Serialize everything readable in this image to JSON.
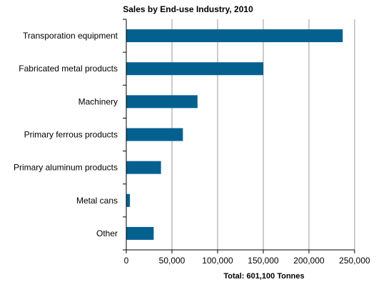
{
  "chart_data": {
    "type": "bar",
    "orientation": "horizontal",
    "title": "Sales by End-use Industry, 2010",
    "footnote": "Total: 601,100 Tonnes",
    "categories": [
      "Transporation equipment",
      "Fabricated metal products",
      "Machinery",
      "Primary ferrous products",
      "Primary aluminum products",
      "Metal cans",
      "Other"
    ],
    "values": [
      237000,
      150000,
      78000,
      62000,
      38000,
      4000,
      30000
    ],
    "xlim": [
      0,
      250000
    ],
    "xticks": [
      0,
      50000,
      100000,
      150000,
      200000,
      250000
    ],
    "xtick_labels": [
      "0",
      "50,000",
      "100,000",
      "150,000",
      "200,000",
      "250,000"
    ],
    "grid": "vertical",
    "bar_color": "#04608f"
  }
}
